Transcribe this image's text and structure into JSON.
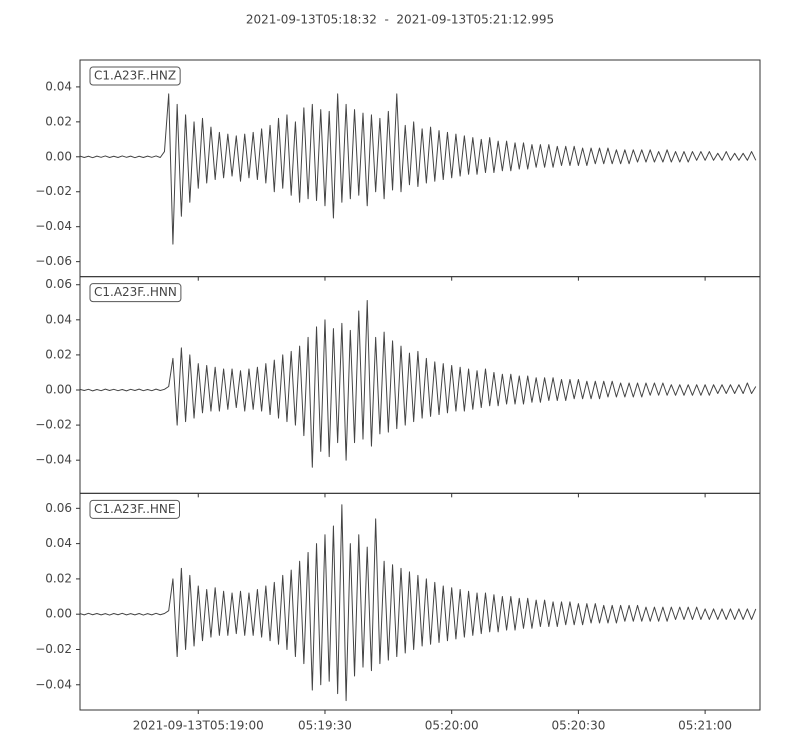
{
  "chart_data": {
    "type": "line",
    "title": "2021-09-13T05:18:32  -  2021-09-13T05:21:12.995",
    "x": [
      0,
      1,
      2,
      3,
      4,
      5,
      6,
      7,
      8,
      9,
      10,
      11,
      12,
      13,
      14,
      15,
      16,
      17,
      18,
      19,
      20,
      21,
      22,
      23,
      24,
      25,
      26,
      27,
      28,
      29,
      30,
      31,
      32,
      33,
      34,
      35,
      36,
      37,
      38,
      39,
      40,
      41,
      42,
      43,
      44,
      45,
      46,
      47,
      48,
      49,
      50,
      51,
      52,
      53,
      54,
      55,
      56,
      57,
      58,
      59,
      60,
      61,
      62,
      63,
      64,
      65,
      66,
      67,
      68,
      69,
      70,
      71,
      72,
      73,
      74,
      75,
      76,
      77,
      78,
      79,
      80,
      81,
      82,
      83,
      84,
      85,
      86,
      87,
      88,
      89,
      90,
      91,
      92,
      93,
      94,
      95,
      96,
      97,
      98,
      99,
      100,
      101,
      102,
      103,
      104,
      105,
      106,
      107,
      108,
      109,
      110,
      111,
      112,
      113,
      114,
      115,
      116,
      117,
      118,
      119,
      120,
      121,
      122,
      123,
      124,
      125,
      126,
      127,
      128,
      129,
      130,
      131,
      132,
      133,
      134,
      135,
      136,
      137,
      138,
      139,
      140,
      141,
      142,
      143,
      144,
      145,
      146,
      147,
      148,
      149,
      150,
      151,
      152,
      153,
      154,
      155,
      156,
      157,
      158,
      159,
      160
    ],
    "xlim": [
      0,
      160.995
    ],
    "xticks": [
      {
        "value": 28,
        "label": "2021-09-13T05:19:00"
      },
      {
        "value": 58,
        "label": "05:19:30"
      },
      {
        "value": 88,
        "label": "05:20:00"
      },
      {
        "value": 118,
        "label": "05:20:30"
      },
      {
        "value": 148,
        "label": "05:21:00"
      }
    ],
    "series": [
      {
        "name": "C1.A23F..HNZ",
        "color": "#444444",
        "ylim": [
          -0.0686,
          0.0554
        ],
        "yticks": [
          {
            "value": -0.06,
            "label": "−0.06"
          },
          {
            "value": -0.04,
            "label": "−0.04"
          },
          {
            "value": -0.02,
            "label": "−0.02"
          },
          {
            "value": 0,
            "label": "0.00"
          },
          0.02,
          0.04
        ],
        "values": [
          0.0004,
          -0.0004,
          0.0003,
          -0.0005,
          0.0004,
          -0.0003,
          0.0005,
          -0.0004,
          0.0003,
          -0.0004,
          0.0005,
          -0.0003,
          0.0004,
          -0.0005,
          0.0003,
          -0.0004,
          0.0004,
          -0.0003,
          0.0005,
          -0.0004,
          0.003,
          0.036,
          -0.05,
          0.03,
          -0.034,
          0.024,
          -0.026,
          0.02,
          -0.018,
          0.022,
          -0.015,
          0.017,
          -0.013,
          0.014,
          -0.012,
          0.013,
          -0.011,
          0.012,
          -0.014,
          0.013,
          -0.012,
          0.014,
          -0.013,
          0.016,
          -0.015,
          0.018,
          -0.02,
          0.022,
          -0.018,
          0.024,
          -0.022,
          0.02,
          -0.026,
          0.028,
          -0.024,
          0.03,
          -0.025,
          0.027,
          -0.028,
          0.026,
          -0.035,
          0.036,
          -0.026,
          0.03,
          -0.024,
          0.027,
          -0.022,
          0.025,
          -0.028,
          0.024,
          -0.02,
          0.022,
          -0.024,
          0.026,
          -0.019,
          0.036,
          -0.02,
          0.018,
          -0.016,
          0.02,
          -0.017,
          0.016,
          -0.015,
          0.017,
          -0.014,
          0.015,
          -0.013,
          0.014,
          -0.012,
          0.013,
          -0.011,
          0.012,
          -0.01,
          0.011,
          -0.01,
          0.01,
          -0.009,
          0.011,
          -0.009,
          0.009,
          -0.008,
          0.009,
          -0.008,
          0.008,
          -0.007,
          0.008,
          -0.007,
          0.007,
          -0.006,
          0.007,
          -0.006,
          0.007,
          -0.006,
          0.006,
          -0.005,
          0.006,
          -0.005,
          0.006,
          -0.005,
          0.005,
          -0.005,
          0.005,
          -0.004,
          0.005,
          -0.004,
          0.005,
          -0.004,
          0.004,
          -0.004,
          0.004,
          -0.004,
          0.004,
          -0.003,
          0.004,
          -0.003,
          0.004,
          -0.003,
          0.003,
          -0.003,
          0.004,
          -0.003,
          0.003,
          -0.003,
          0.003,
          -0.003,
          0.003,
          -0.002,
          0.003,
          -0.002,
          0.003,
          -0.002,
          0.002,
          -0.002,
          0.003,
          -0.002,
          0.002,
          -0.002,
          0.002,
          -0.002,
          0.003,
          -0.002
        ]
      },
      {
        "name": "C1.A23F..HNN",
        "color": "#444444",
        "ylim": [
          -0.0589,
          0.0646
        ],
        "yticks": [
          {
            "value": -0.04,
            "label": "−0.04"
          },
          {
            "value": -0.02,
            "label": "−0.02"
          },
          {
            "value": 0,
            "label": "0.00"
          },
          0.02,
          0.04,
          0.06
        ],
        "values": [
          0.0004,
          -0.0003,
          0.0004,
          -0.0005,
          0.0003,
          -0.0004,
          0.0005,
          -0.0003,
          0.0004,
          -0.0004,
          0.0003,
          -0.0005,
          0.0004,
          -0.0003,
          0.0005,
          -0.0004,
          0.0003,
          -0.0004,
          0.0005,
          -0.0003,
          0.0004,
          0.002,
          0.018,
          -0.02,
          0.024,
          -0.018,
          0.02,
          -0.016,
          0.015,
          -0.013,
          0.014,
          -0.012,
          0.013,
          -0.012,
          0.012,
          -0.011,
          0.012,
          -0.01,
          0.011,
          -0.012,
          0.012,
          -0.011,
          0.013,
          -0.012,
          0.015,
          -0.014,
          0.017,
          -0.016,
          0.02,
          -0.018,
          0.022,
          -0.02,
          0.025,
          -0.026,
          0.03,
          -0.044,
          0.036,
          -0.035,
          0.04,
          -0.038,
          0.035,
          -0.03,
          0.038,
          -0.04,
          0.034,
          -0.03,
          0.045,
          -0.028,
          0.051,
          -0.032,
          0.03,
          -0.025,
          0.033,
          -0.024,
          0.028,
          -0.022,
          0.025,
          -0.02,
          0.021,
          -0.018,
          0.022,
          -0.016,
          0.018,
          -0.015,
          0.016,
          -0.014,
          0.015,
          -0.013,
          0.014,
          -0.012,
          0.013,
          -0.012,
          0.012,
          -0.011,
          0.011,
          -0.01,
          0.012,
          -0.009,
          0.01,
          -0.009,
          0.009,
          -0.008,
          0.009,
          -0.008,
          0.008,
          -0.008,
          0.008,
          -0.007,
          0.007,
          -0.007,
          0.007,
          -0.006,
          0.007,
          -0.006,
          0.006,
          -0.006,
          0.006,
          -0.005,
          0.006,
          -0.005,
          0.005,
          -0.005,
          0.005,
          -0.005,
          0.005,
          -0.004,
          0.005,
          -0.004,
          0.004,
          -0.004,
          0.004,
          -0.004,
          0.004,
          -0.004,
          0.004,
          -0.003,
          0.004,
          -0.003,
          0.004,
          -0.003,
          0.003,
          -0.003,
          0.003,
          -0.003,
          0.003,
          -0.003,
          0.003,
          -0.003,
          0.003,
          -0.003,
          0.003,
          -0.002,
          0.003,
          -0.002,
          0.003,
          -0.002,
          0.003,
          -0.002,
          0.004,
          -0.002,
          0.002
        ]
      },
      {
        "name": "C1.A23F..HNE",
        "color": "#444444",
        "ylim": [
          -0.0543,
          0.0685
        ],
        "yticks": [
          {
            "value": -0.04,
            "label": "−0.04"
          },
          {
            "value": -0.02,
            "label": "−0.02"
          },
          {
            "value": 0,
            "label": "0.00"
          },
          0.02,
          0.04,
          0.06
        ],
        "values": [
          0.0003,
          -0.0004,
          0.0005,
          -0.0003,
          0.0004,
          -0.0004,
          0.0003,
          -0.0005,
          0.0004,
          -0.0003,
          0.0005,
          -0.0004,
          0.0003,
          -0.0004,
          0.0004,
          -0.0005,
          0.0003,
          -0.0004,
          0.0005,
          -0.0003,
          0.0004,
          0.002,
          0.02,
          -0.024,
          0.026,
          -0.02,
          0.022,
          -0.018,
          0.016,
          -0.015,
          0.014,
          -0.013,
          0.015,
          -0.012,
          0.013,
          -0.012,
          0.012,
          -0.011,
          0.013,
          -0.012,
          0.012,
          -0.012,
          0.014,
          -0.013,
          0.016,
          -0.015,
          0.018,
          -0.017,
          0.022,
          -0.02,
          0.025,
          -0.024,
          0.03,
          -0.028,
          0.035,
          -0.043,
          0.04,
          -0.04,
          0.045,
          -0.038,
          0.05,
          -0.045,
          0.062,
          -0.049,
          0.04,
          -0.035,
          0.045,
          -0.03,
          0.038,
          -0.032,
          0.054,
          -0.028,
          0.03,
          -0.026,
          0.028,
          -0.024,
          0.026,
          -0.022,
          0.024,
          -0.02,
          0.022,
          -0.018,
          0.02,
          -0.017,
          0.018,
          -0.016,
          0.016,
          -0.015,
          0.015,
          -0.014,
          0.014,
          -0.013,
          0.013,
          -0.012,
          0.012,
          -0.011,
          0.012,
          -0.01,
          0.011,
          -0.01,
          0.01,
          -0.009,
          0.01,
          -0.009,
          0.009,
          -0.008,
          0.009,
          -0.008,
          0.008,
          -0.007,
          0.008,
          -0.007,
          0.007,
          -0.007,
          0.007,
          -0.006,
          0.007,
          -0.006,
          0.006,
          -0.006,
          0.006,
          -0.005,
          0.006,
          -0.005,
          0.005,
          -0.005,
          0.005,
          -0.005,
          0.005,
          -0.004,
          0.005,
          -0.004,
          0.005,
          -0.004,
          0.004,
          -0.004,
          0.004,
          -0.004,
          0.004,
          -0.004,
          0.004,
          -0.003,
          0.004,
          -0.003,
          0.004,
          -0.003,
          0.004,
          -0.003,
          0.003,
          -0.003,
          0.003,
          -0.003,
          0.003,
          -0.003,
          0.003,
          -0.003,
          0.003,
          -0.003,
          0.003,
          -0.003,
          0.003
        ]
      }
    ]
  }
}
